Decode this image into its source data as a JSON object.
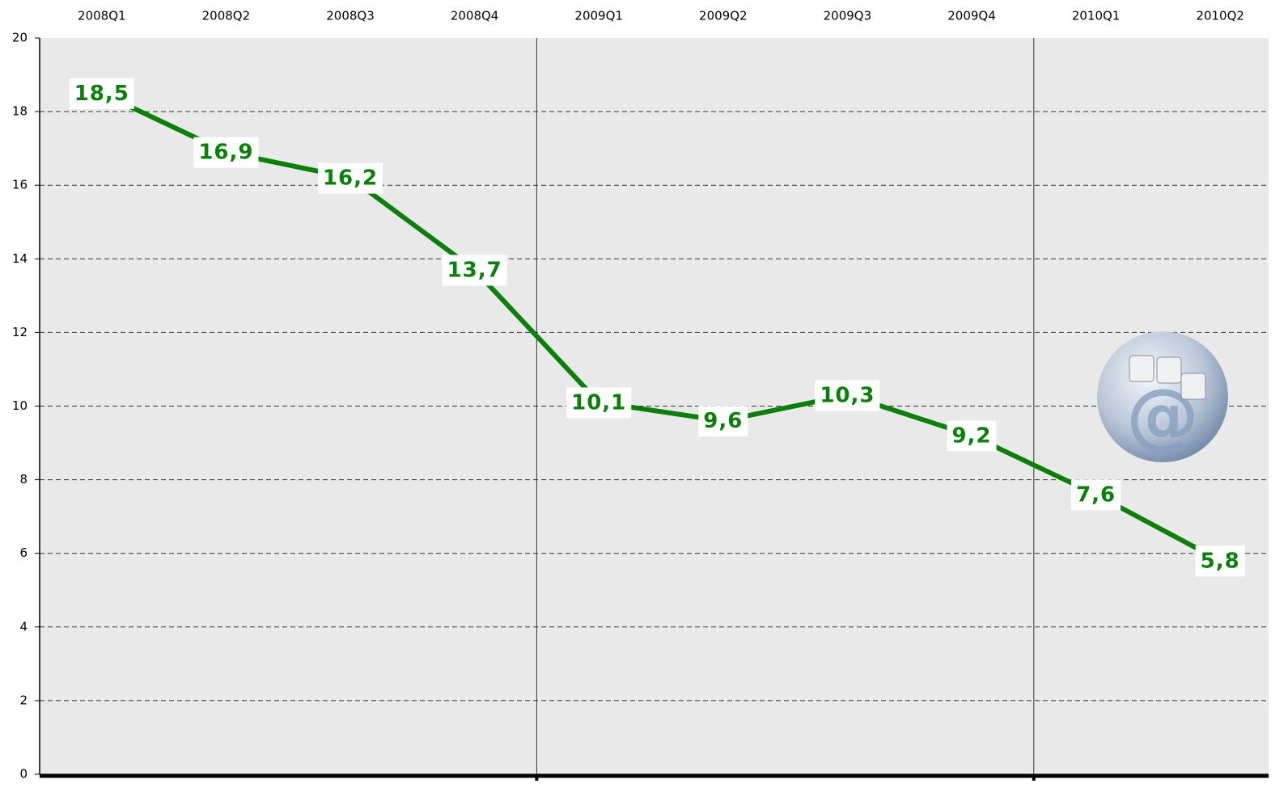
{
  "chart_data": {
    "type": "line",
    "categories": [
      "2008Q1",
      "2008Q2",
      "2008Q3",
      "2008Q4",
      "2009Q1",
      "2009Q2",
      "2009Q3",
      "2009Q4",
      "2010Q1",
      "2010Q2"
    ],
    "values": [
      18.5,
      16.9,
      16.2,
      13.7,
      10.1,
      9.6,
      10.3,
      9.2,
      7.6,
      5.8
    ],
    "value_labels": [
      "18,5",
      "16,9",
      "16,2",
      "13,7",
      "10,1",
      "9,6",
      "10,3",
      "9,2",
      "7,6",
      "5,8"
    ],
    "color": "#0a800a",
    "ylim": [
      0,
      20
    ],
    "yticks": [
      0,
      2,
      4,
      6,
      8,
      10,
      12,
      14,
      16,
      18,
      20
    ],
    "grid": true
  }
}
